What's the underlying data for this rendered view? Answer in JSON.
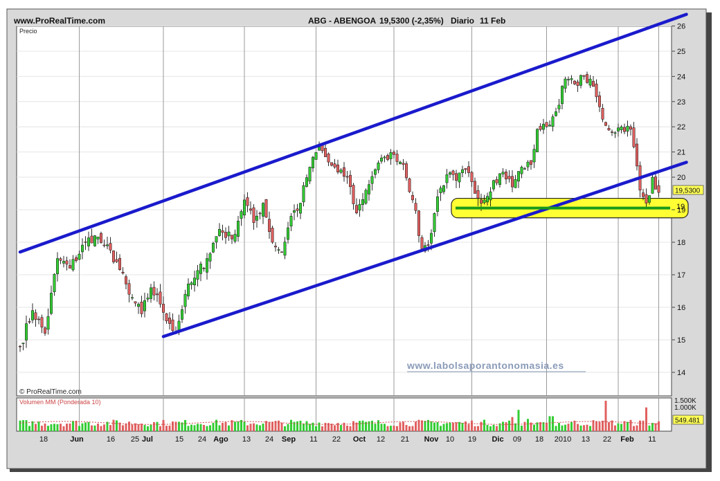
{
  "header": {
    "site": "www.ProRealTime.com",
    "ticker": "ABG - ABENGOA",
    "price": "19,5300 (-2,35%)",
    "period": "Diario",
    "date": "11 Feb"
  },
  "labels": {
    "price_panel": "Precio",
    "copyright": "© ProRealTime.com",
    "volume_panel": "Volumen MM (Ponderada 10)",
    "watermark": "www.labolsaporantonomasia.es",
    "current_price": "19,5300",
    "support_label": "19",
    "volume_value": "549.481"
  },
  "colors": {
    "up": "#33cc33",
    "down": "#e06060",
    "trend": "#1a1acc",
    "support": "#1a9a1a",
    "zone": "#ffff33"
  },
  "chart_data": [
    {
      "type": "candlestick",
      "panel": "price",
      "ylim": [
        13.6,
        26.3
      ],
      "yticks": [
        14,
        15,
        16,
        17,
        18,
        19,
        20,
        21,
        22,
        23,
        24,
        25,
        26
      ],
      "xticks": [
        "18",
        "Jun",
        "16",
        "25",
        "Jul",
        "15",
        "24",
        "Ago",
        "13",
        "24",
        "Sep",
        "11",
        "22",
        "Oct",
        "12",
        "21",
        "Nov",
        "10",
        "19",
        "Dic",
        "09",
        "18",
        "2010",
        "13",
        "22",
        "Feb",
        "11"
      ],
      "anchors": [
        {
          "t": 0,
          "v": 14.8
        },
        {
          "t": 4,
          "v": 15.9
        },
        {
          "t": 8,
          "v": 15.2
        },
        {
          "t": 12,
          "v": 17.5
        },
        {
          "t": 16,
          "v": 17.2
        },
        {
          "t": 21,
          "v": 18.0
        },
        {
          "t": 24,
          "v": 18.2
        },
        {
          "t": 27,
          "v": 17.9
        },
        {
          "t": 31,
          "v": 17.4
        },
        {
          "t": 35,
          "v": 16.4
        },
        {
          "t": 39,
          "v": 15.8
        },
        {
          "t": 42,
          "v": 16.6
        },
        {
          "t": 45,
          "v": 16.1
        },
        {
          "t": 48,
          "v": 15.5
        },
        {
          "t": 50,
          "v": 15.2
        },
        {
          "t": 53,
          "v": 16.4
        },
        {
          "t": 56,
          "v": 16.9
        },
        {
          "t": 60,
          "v": 17.5
        },
        {
          "t": 64,
          "v": 18.4
        },
        {
          "t": 68,
          "v": 18.1
        },
        {
          "t": 72,
          "v": 19.3
        },
        {
          "t": 75,
          "v": 18.6
        },
        {
          "t": 78,
          "v": 19.2
        },
        {
          "t": 81,
          "v": 18.0
        },
        {
          "t": 84,
          "v": 17.7
        },
        {
          "t": 87,
          "v": 18.8
        },
        {
          "t": 90,
          "v": 19.2
        },
        {
          "t": 93,
          "v": 20.4
        },
        {
          "t": 96,
          "v": 21.2
        },
        {
          "t": 99,
          "v": 20.6
        },
        {
          "t": 102,
          "v": 20.2
        },
        {
          "t": 105,
          "v": 20.0
        },
        {
          "t": 108,
          "v": 18.9
        },
        {
          "t": 111,
          "v": 19.6
        },
        {
          "t": 114,
          "v": 20.3
        },
        {
          "t": 117,
          "v": 20.8
        },
        {
          "t": 120,
          "v": 20.9
        },
        {
          "t": 123,
          "v": 20.5
        },
        {
          "t": 126,
          "v": 19.3
        },
        {
          "t": 129,
          "v": 17.8
        },
        {
          "t": 131,
          "v": 17.9
        },
        {
          "t": 134,
          "v": 19.4
        },
        {
          "t": 137,
          "v": 20.1
        },
        {
          "t": 140,
          "v": 19.9
        },
        {
          "t": 143,
          "v": 20.3
        },
        {
          "t": 146,
          "v": 19.5
        },
        {
          "t": 149,
          "v": 19.3
        },
        {
          "t": 152,
          "v": 19.9
        },
        {
          "t": 155,
          "v": 20.2
        },
        {
          "t": 158,
          "v": 19.7
        },
        {
          "t": 161,
          "v": 20.4
        },
        {
          "t": 164,
          "v": 20.5
        },
        {
          "t": 166,
          "v": 21.9
        },
        {
          "t": 169,
          "v": 22.0
        },
        {
          "t": 172,
          "v": 22.6
        },
        {
          "t": 175,
          "v": 23.9
        },
        {
          "t": 178,
          "v": 23.7
        },
        {
          "t": 181,
          "v": 24.0
        },
        {
          "t": 184,
          "v": 23.6
        },
        {
          "t": 187,
          "v": 22.3
        },
        {
          "t": 190,
          "v": 21.8
        },
        {
          "t": 193,
          "v": 22.0
        },
        {
          "t": 196,
          "v": 21.9
        },
        {
          "t": 199,
          "v": 19.6
        },
        {
          "t": 201,
          "v": 19.2
        },
        {
          "t": 203,
          "v": 20.0
        },
        {
          "t": 205,
          "v": 19.53
        }
      ],
      "lines": {
        "upper_channel": [
          [
            0,
            17.7
          ],
          [
            205,
            26.1
          ]
        ],
        "lower_channel": [
          [
            46,
            15.1
          ],
          [
            205,
            20.3
          ]
        ],
        "support": [
          [
            137,
            19.05
          ],
          [
            205,
            19.05
          ]
        ]
      },
      "support_zone": {
        "t_start": 136,
        "t_end": 207,
        "low": 18.75,
        "high": 19.35
      },
      "last_close": 19.53,
      "change_pct": -2.35
    },
    {
      "type": "bar",
      "panel": "volume",
      "name": "Volumen MM (Ponderada 10)",
      "yticks": [
        "1.500K",
        "1.000K"
      ],
      "moving_average": 549481,
      "peaks": [
        {
          "t": 160,
          "rel": 0.7
        },
        {
          "t": 188,
          "rel": 1.0
        },
        {
          "t": 201,
          "rel": 0.78
        }
      ]
    }
  ]
}
